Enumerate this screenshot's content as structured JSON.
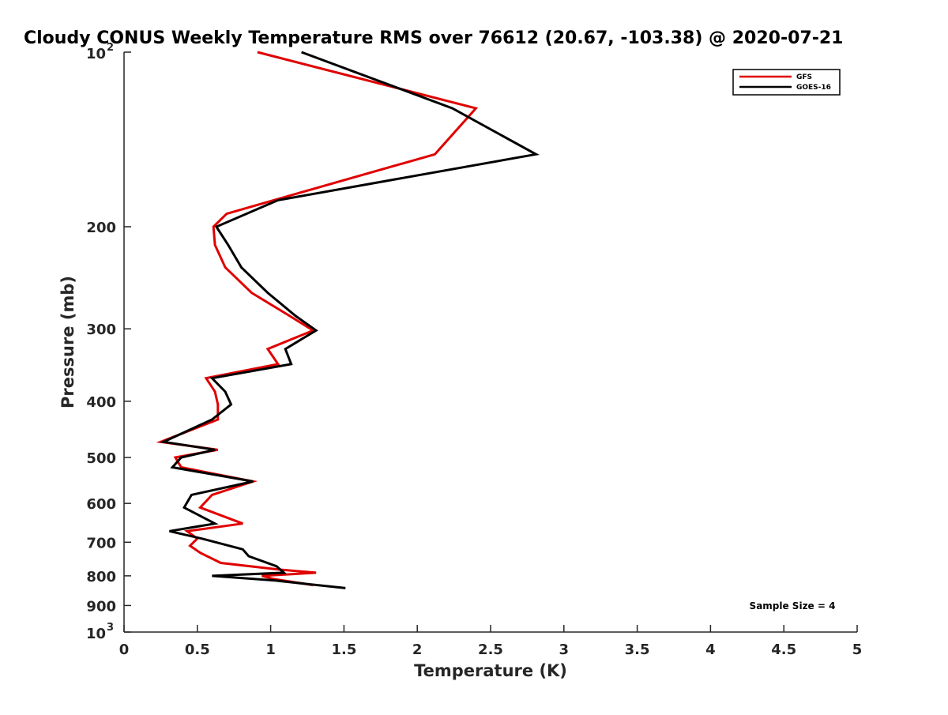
{
  "chart_data": {
    "type": "line",
    "title": "Cloudy CONUS Weekly Temperature RMS over 76612 (20.67, -103.38) @ 2020-07-21",
    "xlabel": "Temperature (K)",
    "ylabel": "Pressure (mb)",
    "xlim": [
      0,
      5
    ],
    "ylim": [
      100,
      1000
    ],
    "yscale": "log",
    "y_reversed": true,
    "grid": false,
    "legend_position": "top-right",
    "x_ticks": [
      0,
      0.5,
      1,
      1.5,
      2,
      2.5,
      3,
      3.5,
      4,
      4.5,
      5
    ],
    "x_tick_labels": [
      "0",
      "0.5",
      "1",
      "1.5",
      "2",
      "2.5",
      "3",
      "3.5",
      "4",
      "4.5",
      "5"
    ],
    "y_ticks": [
      {
        "value": 100,
        "base": "10",
        "exp": "2"
      },
      {
        "value": 200,
        "label": "200"
      },
      {
        "value": 300,
        "label": "300"
      },
      {
        "value": 400,
        "label": "400"
      },
      {
        "value": 500,
        "label": "500"
      },
      {
        "value": 600,
        "label": "600"
      },
      {
        "value": 700,
        "label": "700"
      },
      {
        "value": 800,
        "label": "800"
      },
      {
        "value": 900,
        "label": "900"
      },
      {
        "value": 1000,
        "base": "10",
        "exp": "3"
      }
    ],
    "annotation": "Sample Size = 4",
    "series": [
      {
        "name": "GFS",
        "color": "#e00000",
        "points": [
          [
            0.91,
            100
          ],
          [
            2.4,
            125
          ],
          [
            2.12,
            150
          ],
          [
            1.19,
            175
          ],
          [
            0.7,
            190
          ],
          [
            0.61,
            200
          ],
          [
            0.62,
            215
          ],
          [
            0.69,
            235
          ],
          [
            0.87,
            260
          ],
          [
            1.13,
            285
          ],
          [
            1.29,
            302
          ],
          [
            0.98,
            325
          ],
          [
            1.05,
            345
          ],
          [
            0.56,
            365
          ],
          [
            0.62,
            385
          ],
          [
            0.64,
            405
          ],
          [
            0.64,
            430
          ],
          [
            0.25,
            470
          ],
          [
            0.64,
            485
          ],
          [
            0.35,
            500
          ],
          [
            0.39,
            520
          ],
          [
            0.88,
            550
          ],
          [
            0.6,
            580
          ],
          [
            0.52,
            610
          ],
          [
            0.81,
            650
          ],
          [
            0.43,
            670
          ],
          [
            0.5,
            690
          ],
          [
            0.45,
            710
          ],
          [
            0.52,
            730
          ],
          [
            0.66,
            760
          ],
          [
            1.05,
            780
          ],
          [
            1.31,
            790
          ],
          [
            0.94,
            800
          ],
          [
            1.02,
            810
          ],
          [
            1.29,
            830
          ]
        ]
      },
      {
        "name": "GOES-16",
        "color": "#000000",
        "points": [
          [
            1.21,
            100
          ],
          [
            2.24,
            125
          ],
          [
            2.81,
            150
          ],
          [
            1.05,
            180
          ],
          [
            0.63,
            200
          ],
          [
            0.71,
            215
          ],
          [
            0.8,
            235
          ],
          [
            0.98,
            260
          ],
          [
            1.17,
            285
          ],
          [
            1.31,
            302
          ],
          [
            1.1,
            325
          ],
          [
            1.14,
            345
          ],
          [
            0.6,
            365
          ],
          [
            0.69,
            385
          ],
          [
            0.73,
            405
          ],
          [
            0.6,
            430
          ],
          [
            0.27,
            470
          ],
          [
            0.62,
            485
          ],
          [
            0.39,
            500
          ],
          [
            0.33,
            520
          ],
          [
            0.88,
            550
          ],
          [
            0.46,
            580
          ],
          [
            0.41,
            610
          ],
          [
            0.62,
            650
          ],
          [
            0.31,
            670
          ],
          [
            0.53,
            690
          ],
          [
            0.81,
            720
          ],
          [
            0.85,
            740
          ],
          [
            1.04,
            770
          ],
          [
            1.09,
            790
          ],
          [
            0.6,
            800
          ],
          [
            1.03,
            815
          ],
          [
            1.51,
            840
          ]
        ]
      }
    ]
  }
}
